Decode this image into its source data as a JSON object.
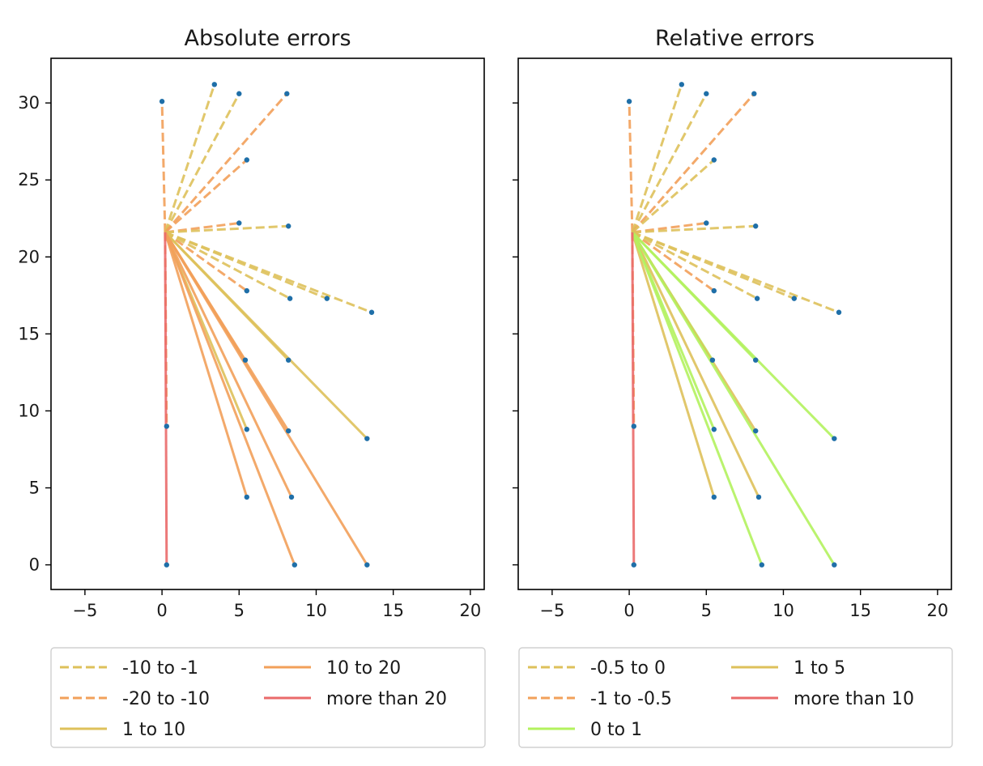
{
  "chart_data": [
    {
      "type": "line",
      "title": "Absolute errors",
      "xlim": [
        -7.2,
        20.9
      ],
      "ylim": [
        -1.6,
        32.9
      ],
      "xticks": [
        -5,
        0,
        5,
        10,
        15,
        20
      ],
      "yticks": [
        0,
        5,
        10,
        15,
        20,
        25,
        30
      ],
      "y_tick_labels_visible": true,
      "grid": false,
      "legend": {
        "placement": "below",
        "columns": 2,
        "entries": [
          {
            "label": "-10 to -1",
            "color": "#DEC15B",
            "dash": true
          },
          {
            "label": "-20 to -10",
            "color": "#F2A05A",
            "dash": true
          },
          {
            "label": "1 to 10",
            "color": "#DEC15B",
            "dash": false
          },
          {
            "label": "10 to 20",
            "color": "#F2A05A",
            "dash": false
          },
          {
            "label": "more than 20",
            "color": "#EA6A6A",
            "dash": false
          }
        ]
      },
      "hub": [
        0.2,
        21.6
      ],
      "points": [
        [
          0,
          30.1
        ],
        [
          3.4,
          31.2
        ],
        [
          5,
          30.6
        ],
        [
          8.1,
          30.6
        ],
        [
          5.5,
          26.3
        ],
        [
          5,
          22.2
        ],
        [
          8.2,
          22
        ],
        [
          5.5,
          17.8
        ],
        [
          8.3,
          17.3
        ],
        [
          10.7,
          17.3
        ],
        [
          13.6,
          16.4
        ],
        [
          5.4,
          13.3
        ],
        [
          8.2,
          13.3
        ],
        [
          0.3,
          9
        ],
        [
          5.5,
          8.8
        ],
        [
          8.2,
          8.7
        ],
        [
          13.3,
          8.2
        ],
        [
          5.5,
          4.4
        ],
        [
          8.4,
          4.4
        ],
        [
          0.3,
          0
        ],
        [
          8.6,
          0
        ],
        [
          13.3,
          0
        ]
      ],
      "segments": [
        {
          "to": [
            0,
            30.1
          ],
          "category": "-20 to -10"
        },
        {
          "to": [
            3.4,
            31.2
          ],
          "category": "-10 to -1"
        },
        {
          "to": [
            5,
            30.6
          ],
          "category": "-10 to -1"
        },
        {
          "to": [
            8.1,
            30.6
          ],
          "category": "-20 to -10"
        },
        {
          "to": [
            5.5,
            26.3
          ],
          "category": "-20 to -10"
        },
        {
          "to": [
            5,
            22.2
          ],
          "category": "-20 to -10"
        },
        {
          "to": [
            8.2,
            22
          ],
          "category": "-10 to -1"
        },
        {
          "to": [
            5.5,
            17.8
          ],
          "category": "-20 to -10"
        },
        {
          "to": [
            8.3,
            17.3
          ],
          "category": "-10 to -1"
        },
        {
          "to": [
            10.7,
            17.3
          ],
          "category": "-10 to -1"
        },
        {
          "to": [
            13.6,
            16.4
          ],
          "category": "-10 to -1"
        },
        {
          "to": [
            5.4,
            13.3
          ],
          "category": "10 to 20"
        },
        {
          "to": [
            8.2,
            13.3
          ],
          "category": "1 to 10"
        },
        {
          "to": [
            13.3,
            8.2
          ],
          "category": "1 to 10"
        },
        {
          "to": [
            5.5,
            8.8
          ],
          "category": "1 to 10"
        },
        {
          "to": [
            8.2,
            8.7
          ],
          "category": "10 to 20"
        },
        {
          "to": [
            5.5,
            4.4
          ],
          "category": "10 to 20"
        },
        {
          "to": [
            8.4,
            4.4
          ],
          "category": "10 to 20"
        },
        {
          "to": [
            8.6,
            0
          ],
          "category": "10 to 20"
        },
        {
          "to": [
            13.3,
            0
          ],
          "category": "10 to 20"
        },
        {
          "to": [
            0.3,
            9
          ],
          "category": "-20 to -10"
        },
        {
          "to": [
            0.3,
            0
          ],
          "category": "more than 20"
        }
      ]
    },
    {
      "type": "line",
      "title": "Relative errors",
      "xlim": [
        -7.2,
        20.9
      ],
      "ylim": [
        -1.6,
        32.9
      ],
      "xticks": [
        -5,
        0,
        5,
        10,
        15,
        20
      ],
      "yticks": [
        0,
        5,
        10,
        15,
        20,
        25,
        30
      ],
      "y_tick_labels_visible": false,
      "grid": false,
      "legend": {
        "placement": "below",
        "columns": 2,
        "entries": [
          {
            "label": "-0.5 to 0",
            "color": "#DEC15B",
            "dash": true
          },
          {
            "label": "-1 to -0.5",
            "color": "#F2A05A",
            "dash": true
          },
          {
            "label": "0 to 1",
            "color": "#B3F25E",
            "dash": false
          },
          {
            "label": "1 to 5",
            "color": "#DEC15B",
            "dash": false
          },
          {
            "label": "more than 10",
            "color": "#EA6A6A",
            "dash": false
          }
        ]
      },
      "hub": [
        0.2,
        21.6
      ],
      "points": [
        [
          0,
          30.1
        ],
        [
          3.4,
          31.2
        ],
        [
          5,
          30.6
        ],
        [
          8.1,
          30.6
        ],
        [
          5.5,
          26.3
        ],
        [
          5,
          22.2
        ],
        [
          8.2,
          22
        ],
        [
          5.5,
          17.8
        ],
        [
          8.3,
          17.3
        ],
        [
          10.7,
          17.3
        ],
        [
          13.6,
          16.4
        ],
        [
          5.4,
          13.3
        ],
        [
          8.2,
          13.3
        ],
        [
          0.3,
          9
        ],
        [
          5.5,
          8.8
        ],
        [
          8.2,
          8.7
        ],
        [
          13.3,
          8.2
        ],
        [
          5.5,
          4.4
        ],
        [
          8.4,
          4.4
        ],
        [
          0.3,
          0
        ],
        [
          8.6,
          0
        ],
        [
          13.3,
          0
        ]
      ],
      "segments": [
        {
          "to": [
            0,
            30.1
          ],
          "category": "-1 to -0.5"
        },
        {
          "to": [
            3.4,
            31.2
          ],
          "category": "-0.5 to 0"
        },
        {
          "to": [
            5,
            30.6
          ],
          "category": "-0.5 to 0"
        },
        {
          "to": [
            8.1,
            30.6
          ],
          "category": "-1 to -0.5"
        },
        {
          "to": [
            5.5,
            26.3
          ],
          "category": "-0.5 to 0"
        },
        {
          "to": [
            5,
            22.2
          ],
          "category": "-1 to -0.5"
        },
        {
          "to": [
            8.2,
            22
          ],
          "category": "-0.5 to 0"
        },
        {
          "to": [
            5.5,
            17.8
          ],
          "category": "-1 to -0.5"
        },
        {
          "to": [
            8.3,
            17.3
          ],
          "category": "-0.5 to 0"
        },
        {
          "to": [
            10.7,
            17.3
          ],
          "category": "-0.5 to 0"
        },
        {
          "to": [
            13.6,
            16.4
          ],
          "category": "-0.5 to 0"
        },
        {
          "to": [
            5.4,
            13.3
          ],
          "category": "0 to 1"
        },
        {
          "to": [
            8.2,
            13.3
          ],
          "category": "0 to 1"
        },
        {
          "to": [
            13.3,
            8.2
          ],
          "category": "0 to 1"
        },
        {
          "to": [
            5.5,
            8.8
          ],
          "category": "0 to 1"
        },
        {
          "to": [
            8.2,
            8.7
          ],
          "category": "1 to 5"
        },
        {
          "to": [
            5.5,
            4.4
          ],
          "category": "1 to 5"
        },
        {
          "to": [
            8.4,
            4.4
          ],
          "category": "1 to 5"
        },
        {
          "to": [
            8.6,
            0
          ],
          "category": "0 to 1"
        },
        {
          "to": [
            13.3,
            0
          ],
          "category": "0 to 1"
        },
        {
          "to": [
            0.3,
            9
          ],
          "category": "-1 to -0.5"
        },
        {
          "to": [
            0.3,
            0
          ],
          "category": "more than 10"
        }
      ]
    }
  ]
}
